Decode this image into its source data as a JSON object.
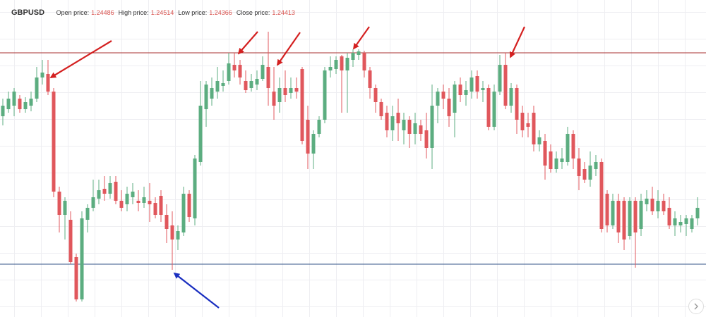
{
  "chart_data": {
    "type": "candlestick",
    "title": "GBPUSD",
    "info": [
      {
        "label": "Open price:",
        "value": 1.24486
      },
      {
        "label": "High price:",
        "value": 1.24514
      },
      {
        "label": "Low price:",
        "value": 1.24366
      },
      {
        "label": "Close price:",
        "value": 1.24413
      }
    ],
    "ylim": [
      1.24139,
      1.24589
    ],
    "up_color": "#5cad80",
    "down_color": "#e0575c",
    "levels": [
      {
        "value": 1.24514,
        "color": "#a83232"
      },
      {
        "value": 1.24214,
        "color": "#34558a"
      }
    ],
    "open": [
      1.24424,
      1.24434,
      1.24439,
      1.24449,
      1.24434,
      1.24439,
      1.24449,
      1.24479,
      1.24484,
      1.24459,
      1.24317,
      1.24284,
      1.24277,
      1.24224,
      1.24164,
      1.24277,
      1.24294,
      1.24307,
      1.24321,
      1.24314,
      1.24331,
      1.24304,
      1.24299,
      1.24309,
      1.24304,
      1.24301,
      1.24304,
      1.24301,
      1.24311,
      1.24284,
      1.24269,
      1.24249,
      1.24259,
      1.24314,
      1.24279,
      1.24359,
      1.24434,
      1.24449,
      1.24459,
      1.24467,
      1.24474,
      1.24497,
      1.24497,
      1.24474,
      1.24464,
      1.24469,
      1.24477,
      1.24494,
      1.24459,
      1.24444,
      1.24464,
      1.24457,
      1.24464,
      1.24491,
      1.24419,
      1.24371,
      1.24399,
      1.24419,
      1.24489,
      1.24491,
      1.24509,
      1.24489,
      1.24504,
      1.24511,
      1.24514,
      1.24489,
      1.24464,
      1.24444,
      1.24429,
      1.24404,
      1.24429,
      1.24404,
      1.24419,
      1.24399,
      1.24411,
      1.24404,
      1.24379,
      1.24439,
      1.24459,
      1.24449,
      1.24429,
      1.24469,
      1.24454,
      1.24459,
      1.24481,
      1.24461,
      1.24464,
      1.24409,
      1.24459,
      1.24497,
      1.24439,
      1.24464,
      1.24429,
      1.24414,
      1.24429,
      1.24384,
      1.24389,
      1.24374,
      1.24349,
      1.24359,
      1.24359,
      1.24399,
      1.24364,
      1.24349,
      1.24334,
      1.24349,
      1.24359,
      1.24314,
      1.24269,
      1.24304,
      1.24304,
      1.24254,
      1.24304,
      1.24264,
      1.24299,
      1.24307,
      1.24289,
      1.24304,
      1.24294,
      1.24269,
      1.24269,
      1.24271,
      1.24264,
      1.24279
    ],
    "high": [
      1.24449,
      1.24459,
      1.24464,
      1.24454,
      1.24451,
      1.24459,
      1.24494,
      1.24504,
      1.24504,
      1.24464,
      1.24324,
      1.24309,
      1.24289,
      1.24229,
      1.24289,
      1.24299,
      1.24334,
      1.24334,
      1.24339,
      1.24339,
      1.24339,
      1.24319,
      1.24324,
      1.24329,
      1.24319,
      1.24324,
      1.24329,
      1.24309,
      1.24319,
      1.24299,
      1.24289,
      1.24269,
      1.24324,
      1.24319,
      1.24369,
      1.24474,
      1.24474,
      1.24479,
      1.24494,
      1.24489,
      1.24514,
      1.24514,
      1.24504,
      1.24489,
      1.24484,
      1.24489,
      1.24509,
      1.24544,
      1.24494,
      1.24479,
      1.24489,
      1.24479,
      1.24479,
      1.24494,
      1.24439,
      1.24404,
      1.24424,
      1.24494,
      1.24509,
      1.24509,
      1.24511,
      1.24514,
      1.24519,
      1.24519,
      1.24517,
      1.24494,
      1.24469,
      1.24449,
      1.24439,
      1.24439,
      1.24449,
      1.24429,
      1.24424,
      1.24429,
      1.24419,
      1.24429,
      1.24469,
      1.24464,
      1.24469,
      1.24464,
      1.24474,
      1.24479,
      1.24474,
      1.24489,
      1.24489,
      1.24474,
      1.24469,
      1.24469,
      1.24511,
      1.24514,
      1.24471,
      1.24469,
      1.24439,
      1.24429,
      1.24439,
      1.24404,
      1.24399,
      1.24384,
      1.24374,
      1.24379,
      1.24409,
      1.24404,
      1.24379,
      1.24359,
      1.24374,
      1.24369,
      1.24364,
      1.24319,
      1.24314,
      1.24314,
      1.24309,
      1.24309,
      1.24309,
      1.24314,
      1.24319,
      1.24324,
      1.24319,
      1.24314,
      1.24309,
      1.24289,
      1.24284,
      1.24284,
      1.24284,
      1.24309
    ],
    "low": [
      1.24411,
      1.24429,
      1.24424,
      1.24429,
      1.24429,
      1.24431,
      1.24444,
      1.24469,
      1.24454,
      1.24309,
      1.24259,
      1.24249,
      1.24214,
      1.24161,
      1.24161,
      1.24259,
      1.24289,
      1.24299,
      1.24304,
      1.24307,
      1.24299,
      1.24289,
      1.24289,
      1.24299,
      1.24289,
      1.24294,
      1.24274,
      1.24279,
      1.24274,
      1.24244,
      1.24206,
      1.24234,
      1.24254,
      1.24274,
      1.24269,
      1.24354,
      1.24409,
      1.24439,
      1.24449,
      1.24459,
      1.24469,
      1.24479,
      1.24469,
      1.24457,
      1.24459,
      1.24461,
      1.24474,
      1.24439,
      1.24419,
      1.24429,
      1.24444,
      1.24449,
      1.24449,
      1.24384,
      1.24349,
      1.24349,
      1.24394,
      1.24414,
      1.24479,
      1.24484,
      1.24429,
      1.24429,
      1.24494,
      1.24504,
      1.24479,
      1.24449,
      1.24429,
      1.24419,
      1.24394,
      1.24389,
      1.24389,
      1.24384,
      1.24379,
      1.24384,
      1.24389,
      1.24364,
      1.24349,
      1.24414,
      1.24434,
      1.24409,
      1.24394,
      1.24444,
      1.24439,
      1.24449,
      1.24449,
      1.24444,
      1.24404,
      1.24404,
      1.24454,
      1.24434,
      1.24429,
      1.24399,
      1.24394,
      1.24394,
      1.24374,
      1.24374,
      1.24334,
      1.24344,
      1.24344,
      1.24349,
      1.24354,
      1.24349,
      1.24319,
      1.24329,
      1.24324,
      1.24339,
      1.24259,
      1.24259,
      1.24264,
      1.24244,
      1.24234,
      1.24249,
      1.24209,
      1.24254,
      1.24289,
      1.24284,
      1.24279,
      1.24284,
      1.24264,
      1.24254,
      1.24259,
      1.24254,
      1.24259,
      1.24269
    ],
    "close": [
      1.24439,
      1.24449,
      1.24459,
      1.24434,
      1.24444,
      1.24449,
      1.24479,
      1.24486,
      1.24459,
      1.24317,
      1.24284,
      1.24304,
      1.24217,
      1.24164,
      1.24279,
      1.24294,
      1.24309,
      1.24319,
      1.24314,
      1.24329,
      1.24304,
      1.24294,
      1.24314,
      1.24317,
      1.24301,
      1.24309,
      1.24299,
      1.24284,
      1.24284,
      1.24264,
      1.24249,
      1.24261,
      1.24314,
      1.24281,
      1.24364,
      1.24439,
      1.24469,
      1.24464,
      1.24474,
      1.24471,
      1.24499,
      1.24489,
      1.24479,
      1.24461,
      1.24474,
      1.24477,
      1.24497,
      1.24464,
      1.24439,
      1.24464,
      1.24454,
      1.24464,
      1.24459,
      1.24389,
      1.24371,
      1.24399,
      1.24419,
      1.24489,
      1.24494,
      1.24504,
      1.24489,
      1.24507,
      1.24514,
      1.24516,
      1.24489,
      1.24464,
      1.24444,
      1.24424,
      1.24404,
      1.24424,
      1.24414,
      1.24419,
      1.24399,
      1.24414,
      1.24399,
      1.24379,
      1.24439,
      1.24459,
      1.24449,
      1.24424,
      1.24469,
      1.24454,
      1.24461,
      1.24479,
      1.24459,
      1.24464,
      1.24409,
      1.24459,
      1.24497,
      1.24439,
      1.24464,
      1.24419,
      1.24404,
      1.24409,
      1.24384,
      1.24394,
      1.24354,
      1.24349,
      1.24364,
      1.24364,
      1.24399,
      1.24364,
      1.24339,
      1.24334,
      1.24354,
      1.24359,
      1.24264,
      1.24269,
      1.24304,
      1.24259,
      1.24249,
      1.24304,
      1.24259,
      1.24304,
      1.24307,
      1.24289,
      1.24304,
      1.24289,
      1.24269,
      1.24279,
      1.24274,
      1.24279,
      1.24279,
      1.24294
    ]
  }
}
